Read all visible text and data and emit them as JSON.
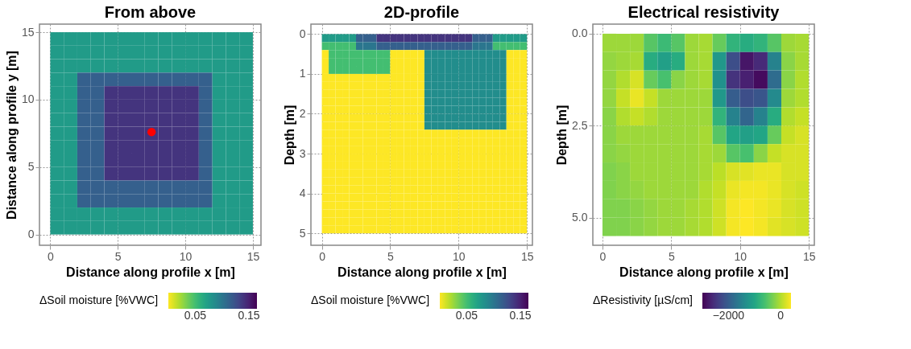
{
  "chart_data": [
    {
      "type": "heatmap",
      "title": "From above",
      "xlabel": "Distance along profile x [m]",
      "ylabel": "Distance along profile y [m]",
      "clabel": "ΔSoil moisture [%VWC]",
      "x": [
        0.5,
        1.5,
        2.5,
        3.5,
        4.5,
        5.5,
        6.5,
        7.5,
        8.5,
        9.5,
        10.5,
        11.5,
        12.5,
        13.5,
        14.5
      ],
      "y": [
        14.5,
        13.5,
        12.5,
        11.5,
        10.5,
        9.5,
        8.5,
        7.5,
        6.5,
        5.5,
        4.5,
        3.5,
        2.5,
        1.5,
        0.5
      ],
      "cells": [
        [
          0.075,
          0.075,
          0.075,
          0.075,
          0.075,
          0.075,
          0.075,
          0.075,
          0.075,
          0.075,
          0.075,
          0.075,
          0.075,
          0.075,
          0.075
        ],
        [
          0.075,
          0.075,
          0.075,
          0.075,
          0.075,
          0.075,
          0.075,
          0.075,
          0.075,
          0.075,
          0.075,
          0.075,
          0.075,
          0.075,
          0.075
        ],
        [
          0.075,
          0.075,
          0.075,
          0.075,
          0.075,
          0.075,
          0.075,
          0.075,
          0.075,
          0.075,
          0.075,
          0.075,
          0.075,
          0.075,
          0.075
        ],
        [
          0.075,
          0.075,
          0.115,
          0.115,
          0.115,
          0.115,
          0.115,
          0.115,
          0.115,
          0.115,
          0.115,
          0.115,
          0.075,
          0.075,
          0.075
        ],
        [
          0.075,
          0.075,
          0.115,
          0.115,
          0.14,
          0.14,
          0.14,
          0.14,
          0.14,
          0.14,
          0.14,
          0.115,
          0.075,
          0.075,
          0.075
        ],
        [
          0.075,
          0.075,
          0.115,
          0.115,
          0.14,
          0.14,
          0.14,
          0.14,
          0.14,
          0.14,
          0.14,
          0.115,
          0.075,
          0.075,
          0.075
        ],
        [
          0.075,
          0.075,
          0.115,
          0.115,
          0.14,
          0.14,
          0.14,
          0.14,
          0.14,
          0.14,
          0.14,
          0.115,
          0.075,
          0.075,
          0.075
        ],
        [
          0.075,
          0.075,
          0.115,
          0.115,
          0.14,
          0.14,
          0.14,
          0.14,
          0.14,
          0.14,
          0.14,
          0.115,
          0.075,
          0.075,
          0.075
        ],
        [
          0.075,
          0.075,
          0.115,
          0.115,
          0.14,
          0.14,
          0.14,
          0.14,
          0.14,
          0.14,
          0.14,
          0.115,
          0.075,
          0.075,
          0.075
        ],
        [
          0.075,
          0.075,
          0.115,
          0.115,
          0.14,
          0.14,
          0.14,
          0.14,
          0.14,
          0.14,
          0.14,
          0.115,
          0.075,
          0.075,
          0.075
        ],
        [
          0.075,
          0.075,
          0.115,
          0.115,
          0.14,
          0.14,
          0.14,
          0.14,
          0.14,
          0.14,
          0.14,
          0.115,
          0.075,
          0.075,
          0.075
        ],
        [
          0.075,
          0.075,
          0.115,
          0.115,
          0.115,
          0.115,
          0.115,
          0.115,
          0.115,
          0.115,
          0.115,
          0.115,
          0.075,
          0.075,
          0.075
        ],
        [
          0.075,
          0.075,
          0.115,
          0.115,
          0.115,
          0.115,
          0.115,
          0.115,
          0.115,
          0.115,
          0.115,
          0.115,
          0.075,
          0.075,
          0.075
        ],
        [
          0.075,
          0.075,
          0.075,
          0.075,
          0.075,
          0.075,
          0.075,
          0.075,
          0.075,
          0.075,
          0.075,
          0.075,
          0.075,
          0.075,
          0.075
        ],
        [
          0.075,
          0.075,
          0.075,
          0.075,
          0.075,
          0.075,
          0.075,
          0.075,
          0.075,
          0.075,
          0.075,
          0.075,
          0.075,
          0.075,
          0.075
        ]
      ],
      "colors": [
        "#fde725",
        "#bddf26",
        "#7ad151",
        "#44bf70",
        "#22a884",
        "#21918c",
        "#2a788e",
        "#355f8d",
        "#414487",
        "#482475",
        "#440154"
      ],
      "clim": [
        0,
        0.165
      ],
      "cticks": [
        0.05,
        0.15
      ],
      "xlim": [
        -0.8,
        15.6
      ],
      "xticks": [
        0,
        5,
        10,
        15
      ],
      "ylim": [
        -0.8,
        15.6
      ],
      "yticks": [
        0,
        5,
        10,
        15
      ],
      "grid": true,
      "series": [
        {
          "type": "scatter",
          "color": "#ff0000",
          "x": [
            7.5
          ],
          "values": [
            7.6
          ]
        }
      ]
    },
    {
      "type": "heatmap",
      "title": "2D-profile",
      "xlabel": "Distance along profile x [m]",
      "ylabel": "Depth [m]",
      "clabel": "ΔSoil moisture [%VWC]",
      "x": [
        0.25,
        0.75,
        1.25,
        1.75,
        2.25,
        2.75,
        3.25,
        3.75,
        4.25,
        4.75,
        5.25,
        5.75,
        6.25,
        6.75,
        7.25,
        7.75,
        8.25,
        8.75,
        9.25,
        9.75,
        10.25,
        10.75,
        11.25,
        11.75,
        12.25,
        12.75,
        13.25,
        13.75,
        14.25,
        14.75
      ],
      "y": [
        0.1,
        0.3,
        0.5,
        0.7,
        0.9,
        1.1,
        1.3,
        1.5,
        1.7,
        1.9,
        2.1,
        2.3,
        2.5,
        2.7,
        2.9,
        3.1,
        3.3,
        3.5,
        3.7,
        3.9,
        4.1,
        4.3,
        4.5,
        4.7,
        4.9
      ],
      "cells": [
        [
          0.075,
          0.075,
          0.075,
          0.075,
          0.075,
          0.115,
          0.115,
          0.115,
          0.14,
          0.14,
          0.14,
          0.14,
          0.14,
          0.14,
          0.14,
          0.14,
          0.14,
          0.14,
          0.14,
          0.14,
          0.14,
          0.14,
          0.115,
          0.115,
          0.115,
          0.075,
          0.075,
          0.075,
          0.075,
          0.075
        ],
        [
          0.05,
          0.05,
          0.05,
          0.05,
          0.05,
          0.1,
          0.1,
          0.1,
          0.115,
          0.115,
          0.115,
          0.115,
          0.115,
          0.115,
          0.115,
          0.115,
          0.115,
          0.115,
          0.115,
          0.115,
          0.115,
          0.115,
          0.1,
          0.1,
          0.1,
          0.05,
          0.05,
          0.05,
          0.05,
          0.05
        ],
        [
          0,
          0.05,
          0.05,
          0.05,
          0.05,
          0.05,
          0.05,
          0.05,
          0.05,
          0.05,
          0,
          0,
          0,
          0,
          0,
          0.085,
          0.085,
          0.085,
          0.085,
          0.085,
          0.085,
          0.085,
          0.085,
          0.085,
          0.085,
          0.085,
          0.085,
          0,
          0,
          0
        ],
        [
          0,
          0.05,
          0.05,
          0.05,
          0.05,
          0.05,
          0.05,
          0.05,
          0.05,
          0.05,
          0,
          0,
          0,
          0,
          0,
          0.085,
          0.085,
          0.085,
          0.085,
          0.085,
          0.085,
          0.085,
          0.085,
          0.085,
          0.085,
          0.085,
          0.085,
          0,
          0,
          0
        ],
        [
          0,
          0.05,
          0.05,
          0.05,
          0.05,
          0.05,
          0.05,
          0.05,
          0.05,
          0.05,
          0,
          0,
          0,
          0,
          0,
          0.085,
          0.085,
          0.085,
          0.085,
          0.085,
          0.085,
          0.085,
          0.085,
          0.085,
          0.085,
          0.085,
          0.085,
          0,
          0,
          0
        ],
        [
          0,
          0,
          0,
          0,
          0,
          0,
          0,
          0,
          0,
          0,
          0,
          0,
          0,
          0,
          0,
          0.085,
          0.085,
          0.085,
          0.085,
          0.085,
          0.085,
          0.085,
          0.085,
          0.085,
          0.085,
          0.085,
          0.085,
          0,
          0,
          0
        ],
        [
          0,
          0,
          0,
          0,
          0,
          0,
          0,
          0,
          0,
          0,
          0,
          0,
          0,
          0,
          0,
          0.085,
          0.085,
          0.085,
          0.085,
          0.085,
          0.085,
          0.085,
          0.085,
          0.085,
          0.085,
          0.085,
          0.085,
          0,
          0,
          0
        ],
        [
          0,
          0,
          0,
          0,
          0,
          0,
          0,
          0,
          0,
          0,
          0,
          0,
          0,
          0,
          0,
          0.085,
          0.085,
          0.085,
          0.085,
          0.085,
          0.085,
          0.085,
          0.085,
          0.085,
          0.085,
          0.085,
          0.085,
          0,
          0,
          0
        ],
        [
          0,
          0,
          0,
          0,
          0,
          0,
          0,
          0,
          0,
          0,
          0,
          0,
          0,
          0,
          0,
          0.085,
          0.085,
          0.085,
          0.085,
          0.085,
          0.085,
          0.085,
          0.085,
          0.085,
          0.085,
          0.085,
          0.085,
          0,
          0,
          0
        ],
        [
          0,
          0,
          0,
          0,
          0,
          0,
          0,
          0,
          0,
          0,
          0,
          0,
          0,
          0,
          0,
          0.085,
          0.085,
          0.085,
          0.085,
          0.085,
          0.085,
          0.085,
          0.085,
          0.085,
          0.085,
          0.085,
          0.085,
          0,
          0,
          0
        ],
        [
          0,
          0,
          0,
          0,
          0,
          0,
          0,
          0,
          0,
          0,
          0,
          0,
          0,
          0,
          0,
          0.085,
          0.085,
          0.085,
          0.085,
          0.085,
          0.085,
          0.085,
          0.085,
          0.085,
          0.085,
          0.085,
          0.085,
          0,
          0,
          0
        ],
        [
          0,
          0,
          0,
          0,
          0,
          0,
          0,
          0,
          0,
          0,
          0,
          0,
          0,
          0,
          0,
          0.085,
          0.085,
          0.085,
          0.085,
          0.085,
          0.085,
          0.085,
          0.085,
          0.085,
          0.085,
          0.085,
          0.085,
          0,
          0,
          0
        ],
        [
          0,
          0,
          0,
          0,
          0,
          0,
          0,
          0,
          0,
          0,
          0,
          0,
          0,
          0,
          0,
          0,
          0,
          0,
          0,
          0,
          0,
          0,
          0,
          0,
          0,
          0,
          0,
          0,
          0,
          0
        ],
        [
          0,
          0,
          0,
          0,
          0,
          0,
          0,
          0,
          0,
          0,
          0,
          0,
          0,
          0,
          0,
          0,
          0,
          0,
          0,
          0,
          0,
          0,
          0,
          0,
          0,
          0,
          0,
          0,
          0,
          0
        ],
        [
          0,
          0,
          0,
          0,
          0,
          0,
          0,
          0,
          0,
          0,
          0,
          0,
          0,
          0,
          0,
          0,
          0,
          0,
          0,
          0,
          0,
          0,
          0,
          0,
          0,
          0,
          0,
          0,
          0,
          0
        ],
        [
          0,
          0,
          0,
          0,
          0,
          0,
          0,
          0,
          0,
          0,
          0,
          0,
          0,
          0,
          0,
          0,
          0,
          0,
          0,
          0,
          0,
          0,
          0,
          0,
          0,
          0,
          0,
          0,
          0,
          0
        ],
        [
          0,
          0,
          0,
          0,
          0,
          0,
          0,
          0,
          0,
          0,
          0,
          0,
          0,
          0,
          0,
          0,
          0,
          0,
          0,
          0,
          0,
          0,
          0,
          0,
          0,
          0,
          0,
          0,
          0,
          0
        ],
        [
          0,
          0,
          0,
          0,
          0,
          0,
          0,
          0,
          0,
          0,
          0,
          0,
          0,
          0,
          0,
          0,
          0,
          0,
          0,
          0,
          0,
          0,
          0,
          0,
          0,
          0,
          0,
          0,
          0,
          0
        ],
        [
          0,
          0,
          0,
          0,
          0,
          0,
          0,
          0,
          0,
          0,
          0,
          0,
          0,
          0,
          0,
          0,
          0,
          0,
          0,
          0,
          0,
          0,
          0,
          0,
          0,
          0,
          0,
          0,
          0,
          0
        ],
        [
          0,
          0,
          0,
          0,
          0,
          0,
          0,
          0,
          0,
          0,
          0,
          0,
          0,
          0,
          0,
          0,
          0,
          0,
          0,
          0,
          0,
          0,
          0,
          0,
          0,
          0,
          0,
          0,
          0,
          0
        ],
        [
          0,
          0,
          0,
          0,
          0,
          0,
          0,
          0,
          0,
          0,
          0,
          0,
          0,
          0,
          0,
          0,
          0,
          0,
          0,
          0,
          0,
          0,
          0,
          0,
          0,
          0,
          0,
          0,
          0,
          0
        ],
        [
          0,
          0,
          0,
          0,
          0,
          0,
          0,
          0,
          0,
          0,
          0,
          0,
          0,
          0,
          0,
          0,
          0,
          0,
          0,
          0,
          0,
          0,
          0,
          0,
          0,
          0,
          0,
          0,
          0,
          0
        ],
        [
          0,
          0,
          0,
          0,
          0,
          0,
          0,
          0,
          0,
          0,
          0,
          0,
          0,
          0,
          0,
          0,
          0,
          0,
          0,
          0,
          0,
          0,
          0,
          0,
          0,
          0,
          0,
          0,
          0,
          0
        ],
        [
          0,
          0,
          0,
          0,
          0,
          0,
          0,
          0,
          0,
          0,
          0,
          0,
          0,
          0,
          0,
          0,
          0,
          0,
          0,
          0,
          0,
          0,
          0,
          0,
          0,
          0,
          0,
          0,
          0,
          0
        ],
        [
          0,
          0,
          0,
          0,
          0,
          0,
          0,
          0,
          0,
          0,
          0,
          0,
          0,
          0,
          0,
          0,
          0,
          0,
          0,
          0,
          0,
          0,
          0,
          0,
          0,
          0,
          0,
          0,
          0,
          0
        ]
      ],
      "colors": [
        "#fde725",
        "#bddf26",
        "#7ad151",
        "#44bf70",
        "#22a884",
        "#21918c",
        "#2a788e",
        "#355f8d",
        "#414487",
        "#482475",
        "#440154"
      ],
      "clim": [
        0,
        0.165
      ],
      "cticks": [
        0.05,
        0.15
      ],
      "xlim": [
        -0.8,
        15.4
      ],
      "xticks": [
        0,
        5,
        10,
        15
      ],
      "ylim": [
        5.3,
        -0.25
      ],
      "yticks": [
        0,
        1,
        2,
        3,
        4,
        5
      ],
      "grid": true
    },
    {
      "type": "heatmap",
      "title": "Electrical resistivity",
      "xlabel": "Distance along profile x [m]",
      "ylabel": "Depth [m]",
      "clabel": "ΔResistivity [µS/cm]",
      "x": [
        0.5,
        1.5,
        2.5,
        3.5,
        4.5,
        5.5,
        6.5,
        7.5,
        8.5,
        9.5,
        10.5,
        11.5,
        12.5,
        13.5,
        14.5
      ],
      "y": [
        0.25,
        0.75,
        1.25,
        1.75,
        2.25,
        2.75,
        3.25,
        3.75,
        4.25,
        4.75,
        5.25
      ],
      "cells": [
        [
          -100,
          -100,
          -100,
          -500,
          -700,
          -500,
          -100,
          -50,
          -400,
          -800,
          -900,
          -800,
          -500,
          -100,
          -50
        ],
        [
          -150,
          -100,
          -50,
          -900,
          -1100,
          -900,
          -100,
          -50,
          -1200,
          -2200,
          -2800,
          -2600,
          -1500,
          -200,
          -50
        ],
        [
          -150,
          0,
          200,
          -400,
          -600,
          -200,
          -100,
          -50,
          -1300,
          -2500,
          -2700,
          -2900,
          -1800,
          -200,
          0
        ],
        [
          -150,
          100,
          300,
          100,
          -100,
          -100,
          -100,
          -100,
          -1200,
          -2000,
          -2200,
          -2100,
          -1400,
          -100,
          0
        ],
        [
          -200,
          0,
          100,
          0,
          -100,
          -100,
          -100,
          -100,
          -800,
          -1500,
          -1900,
          -1500,
          -900,
          0,
          100
        ],
        [
          -200,
          -100,
          -100,
          -100,
          -100,
          -100,
          -100,
          -50,
          -500,
          -1000,
          -1100,
          -1000,
          -400,
          100,
          200
        ],
        [
          -200,
          -150,
          -100,
          -100,
          -100,
          -100,
          -100,
          -50,
          -100,
          -500,
          -600,
          -200,
          100,
          200,
          200
        ],
        [
          -250,
          -200,
          -100,
          -100,
          -100,
          -100,
          -100,
          -50,
          50,
          200,
          250,
          300,
          300,
          200,
          200
        ],
        [
          -250,
          -200,
          -150,
          -100,
          -100,
          -100,
          -100,
          0,
          100,
          300,
          350,
          350,
          300,
          200,
          150
        ],
        [
          -250,
          -250,
          -200,
          -150,
          -100,
          -100,
          -50,
          0,
          150,
          350,
          400,
          350,
          300,
          200,
          150
        ],
        [
          -250,
          -250,
          -200,
          -150,
          -100,
          -100,
          -50,
          0,
          150,
          350,
          400,
          350,
          250,
          200,
          150
        ]
      ],
      "colors": [
        "#440154",
        "#482475",
        "#414487",
        "#355f8d",
        "#2a788e",
        "#21918c",
        "#22a884",
        "#44bf70",
        "#7ad151",
        "#bddf26",
        "#fde725"
      ],
      "clim": [
        -3000,
        400
      ],
      "cticks": [
        -2000,
        0
      ],
      "xlim": [
        -0.7,
        15.4
      ],
      "xticks": [
        0,
        5,
        10,
        15
      ],
      "ylim": [
        5.75,
        -0.26
      ],
      "yticks": [
        {
          "value": 0,
          "label": "0.0"
        },
        {
          "value": 2.5,
          "label": "2.5"
        },
        {
          "value": 5,
          "label": "5.0"
        }
      ],
      "grid": true
    }
  ]
}
